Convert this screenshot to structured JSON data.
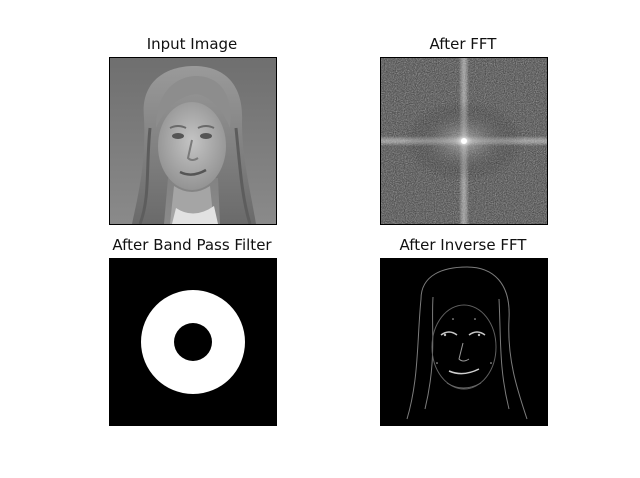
{
  "figure": {
    "panels": [
      {
        "title": "Input Image",
        "icon": "face-photo"
      },
      {
        "title": "After FFT",
        "icon": "fft-spectrum"
      },
      {
        "title": "After Band Pass Filter",
        "icon": "ring-mask"
      },
      {
        "title": "After Inverse FFT",
        "icon": "edge-face"
      }
    ],
    "colors": {
      "background": "#ffffff",
      "mask_on": "#ffffff",
      "mask_off": "#000000"
    }
  }
}
